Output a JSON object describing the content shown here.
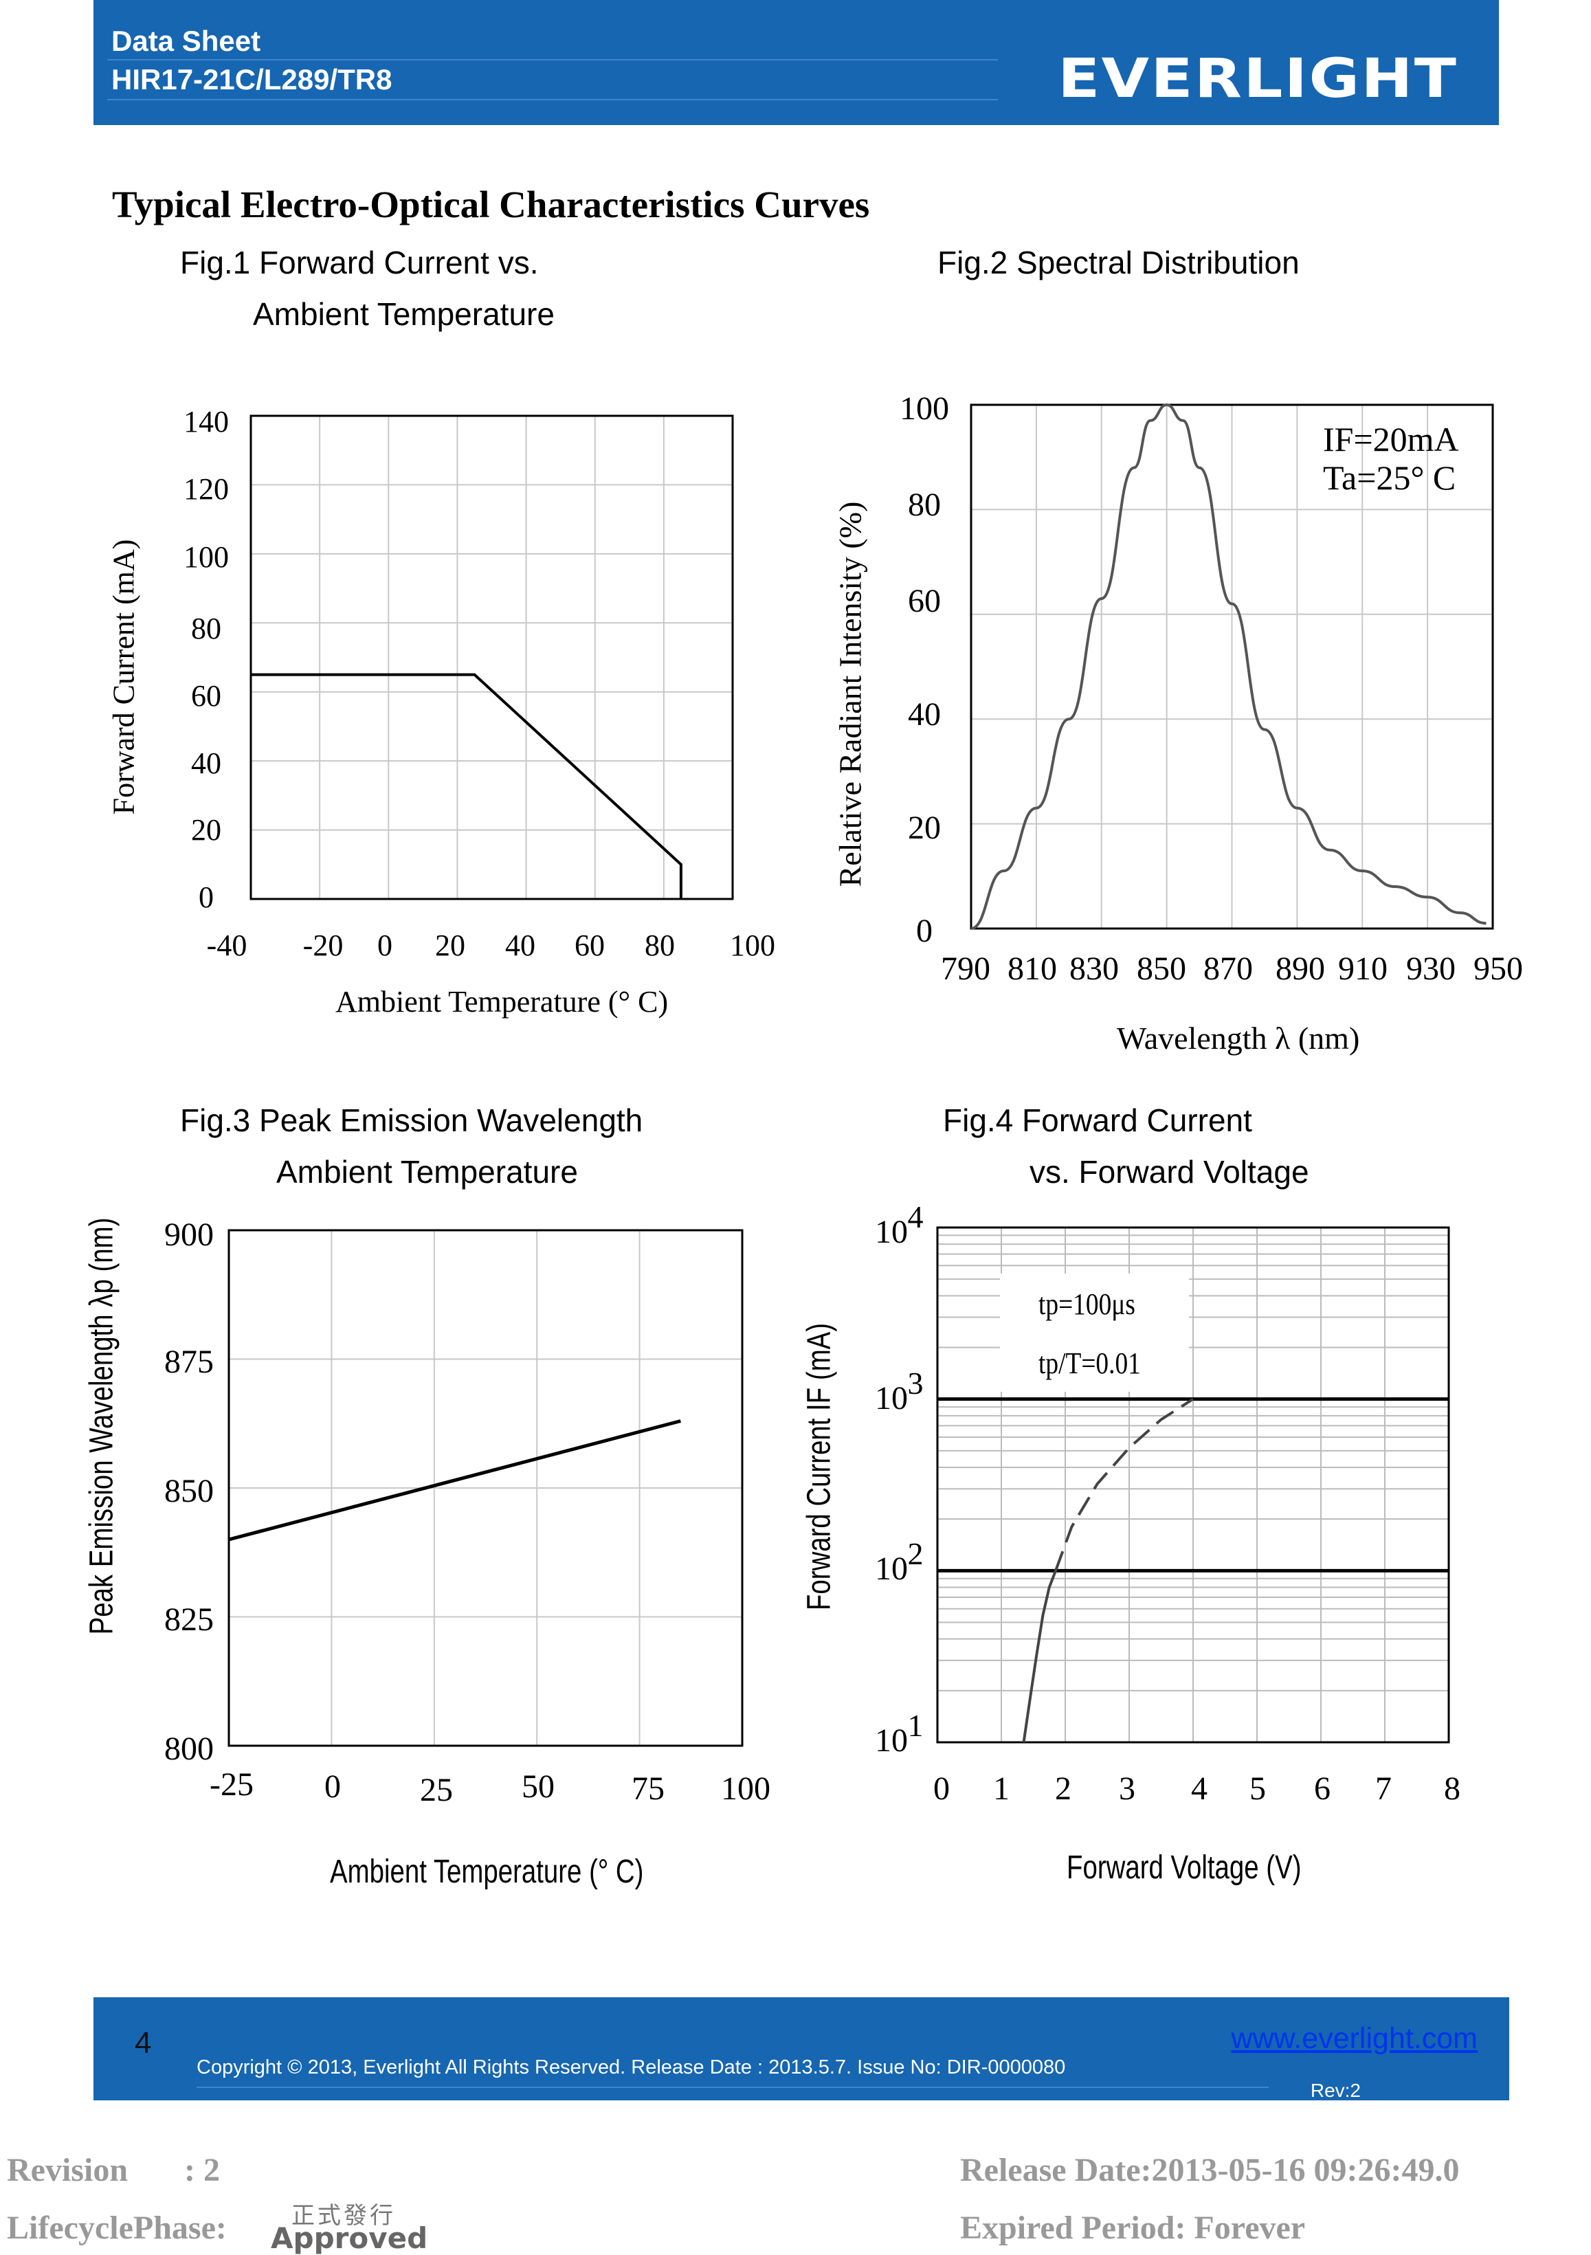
{
  "header": {
    "line1": "Data Sheet",
    "line2": "HIR17-21C/L289/TR8",
    "logo": "EVERLIGHT",
    "bg_color": "#1666b2"
  },
  "document": {
    "title": "Typical Electro-Optical Characteristics Curves"
  },
  "figures": {
    "fig1": {
      "title_line1": "Fig.1 Forward Current vs.",
      "title_line2": "Ambient Temperature"
    },
    "fig2": {
      "title_line1": "Fig.2 Spectral Distribution",
      "annotation_line1": "IF=20mA",
      "annotation_line2": "Ta=25°  C"
    },
    "fig3": {
      "title_line1": "Fig.3    Peak Emission Wavelength",
      "title_line2": "Ambient Temperature"
    },
    "fig4": {
      "title_line1": "Fig.4    Forward Current",
      "title_line2": "vs. Forward Voltage",
      "annotation_line1": "tp=100μs",
      "annotation_line2": "tp/T=0.01"
    }
  },
  "chart_data": [
    {
      "type": "line",
      "title": "Fig.1 Forward Current vs. Ambient Temperature",
      "xlabel": "Ambient Temperature (°  C)",
      "ylabel": "Forward Current (mA)",
      "xlim": [
        -40,
        100
      ],
      "ylim": [
        0,
        140
      ],
      "x_ticks": [
        "-40",
        "-20",
        "0",
        "20",
        "40",
        "60",
        "80",
        "100"
      ],
      "y_ticks": [
        "0",
        "20",
        "40",
        "60",
        "80",
        "100",
        "120",
        "140"
      ],
      "grid": true,
      "series": [
        {
          "x": [
            -40,
            25,
            85,
            85
          ],
          "y": [
            65,
            65,
            10,
            0
          ]
        }
      ]
    },
    {
      "type": "line",
      "title": "Fig.2 Spectral Distribution",
      "xlabel": "Wavelength λ (nm)",
      "ylabel": "Relative Radiant Intensity (%)",
      "xlim": [
        790,
        950
      ],
      "ylim": [
        0,
        100
      ],
      "x_ticks": [
        "790",
        "810",
        "830",
        "850",
        "870",
        "890",
        "910",
        "930",
        "950"
      ],
      "y_ticks": [
        "0",
        "20",
        "40",
        "60",
        "80",
        "100"
      ],
      "grid": true,
      "series": [
        {
          "x": [
            790,
            800,
            810,
            820,
            830,
            840,
            845,
            850,
            855,
            860,
            870,
            880,
            890,
            900,
            910,
            920,
            930,
            940,
            948
          ],
          "y": [
            0,
            11,
            23,
            40,
            63,
            88,
            97,
            100,
            97,
            88,
            62,
            38,
            23,
            15,
            11,
            8,
            6,
            3,
            1
          ]
        }
      ]
    },
    {
      "type": "line",
      "title": "Fig.3 Peak Emission Wavelength Ambient Temperature",
      "xlabel": "Ambient Temperature (°  C)",
      "ylabel": "Peak Emission Wavelength λp (nm)",
      "xlim": [
        -25,
        100
      ],
      "ylim": [
        800,
        900
      ],
      "x_ticks": [
        "-25",
        "0",
        "25",
        "50",
        "75",
        "100"
      ],
      "y_ticks": [
        "800",
        "825",
        "850",
        "875",
        "900"
      ],
      "grid": true,
      "series": [
        {
          "x": [
            -25,
            85
          ],
          "y": [
            840,
            863
          ]
        }
      ]
    },
    {
      "type": "line",
      "title": "Fig.4 Forward Current vs. Forward Voltage",
      "xlabel": "Forward Voltage (V)",
      "ylabel": "Forward Current IF (mA)",
      "xlim": [
        0,
        8
      ],
      "ylim": [
        10,
        10000
      ],
      "log_y": true,
      "x_ticks": [
        "0",
        "1",
        "2",
        "3",
        "4",
        "5",
        "6",
        "7",
        "8"
      ],
      "y_ticks": [
        "10^1",
        "10^2",
        "10^3",
        "10^4"
      ],
      "grid": true,
      "horizontal_lines": [
        100,
        1000
      ],
      "series": [
        {
          "style": "solid",
          "x": [
            1.35,
            1.45,
            1.55,
            1.65,
            1.75,
            1.85
          ],
          "y": [
            10,
            18,
            32,
            55,
            80,
            100
          ]
        },
        {
          "style": "dashed",
          "x": [
            1.85,
            2.1,
            2.5,
            3.0,
            3.5,
            4.0
          ],
          "y": [
            100,
            180,
            320,
            520,
            760,
            1000
          ]
        }
      ]
    }
  ],
  "footer": {
    "page_number": "4",
    "copyright": "Copyright © 2013, Everlight All Rights Reserved. Release Date : 2013.5.7.    Issue No: DIR-0000080",
    "link": "www.everlight.com",
    "rev": "Rev:2"
  },
  "meta": {
    "revision_label": "Revision",
    "revision_value": ": 2",
    "release_date": "Release Date:2013-05-16 09:26:49.0",
    "lifecycle_label": "LifecyclePhase:",
    "stamp_cn": "正式發行",
    "stamp_en": "Approved",
    "expired": "Expired Period: Forever"
  }
}
